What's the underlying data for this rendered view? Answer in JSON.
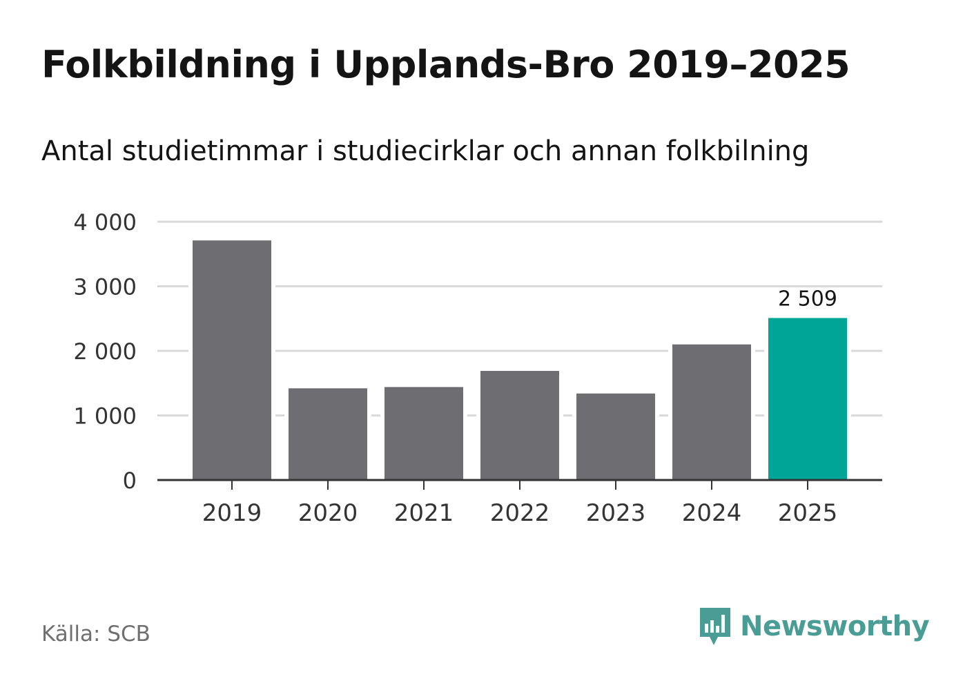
{
  "title": "Folkbildning i Upplands-Bro 2019–2025",
  "subtitle": "Antal studietimmar i studiecirklar och annan folkbilning",
  "source": "Källa: SCB",
  "brand": "Newsworthy",
  "colors": {
    "bar_default": "#6d6d72",
    "bar_highlight": "#00a598",
    "gridline": "#d9d9d9",
    "axis": "#333333",
    "brand": "#4a9d95"
  },
  "chart_data": {
    "type": "bar",
    "categories": [
      "2019",
      "2020",
      "2021",
      "2022",
      "2023",
      "2024",
      "2025"
    ],
    "values": [
      3710,
      1420,
      1440,
      1690,
      1340,
      2100,
      2509
    ],
    "highlight_index": 6,
    "value_labels": [
      "",
      "",
      "",
      "",
      "",
      "",
      "2 509"
    ],
    "yticks": [
      0,
      1000,
      2000,
      3000,
      4000
    ],
    "ytick_labels": [
      "0",
      "1 000",
      "2 000",
      "3 000",
      "4 000"
    ],
    "ylim": [
      0,
      4000
    ],
    "xlabel": "",
    "ylabel": "",
    "grid": true
  }
}
